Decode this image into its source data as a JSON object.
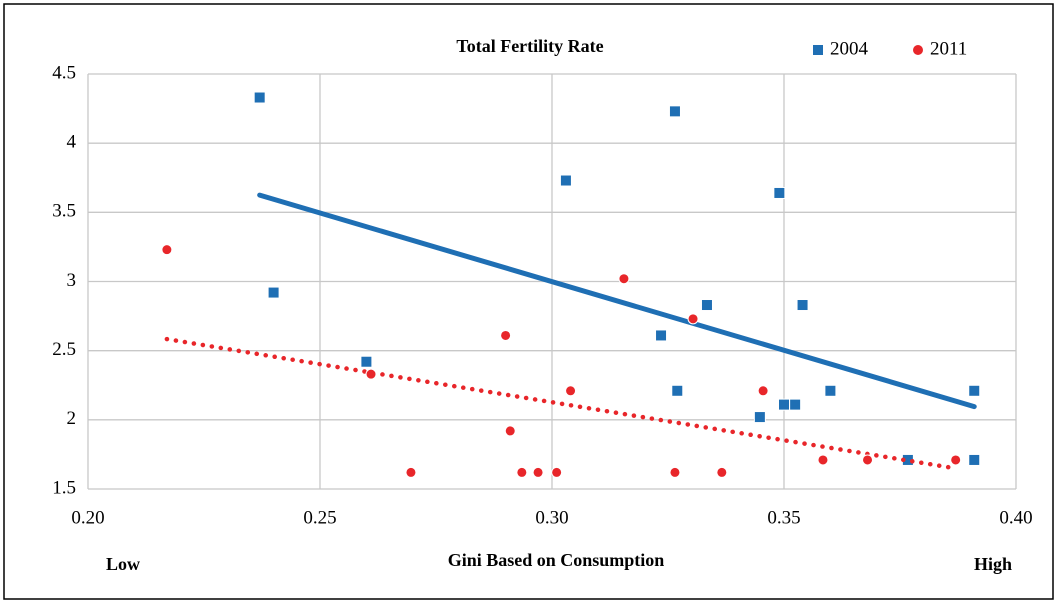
{
  "chart_data": {
    "type": "scatter",
    "title": "Total Fertility Rate",
    "x_label": "Gini Based on Consumption",
    "annotations": [
      "Low",
      "High"
    ],
    "xlim": [
      0.2,
      0.4
    ],
    "xticks": [
      {
        "value": 0.2,
        "label": "0.20"
      },
      {
        "value": 0.25,
        "label": "0.25"
      },
      {
        "value": 0.3,
        "label": "0.30"
      },
      {
        "value": 0.35,
        "label": "0.35"
      },
      {
        "value": 0.4,
        "label": "0.40"
      }
    ],
    "ylim": [
      1.5,
      4.5
    ],
    "yticks": [
      1.5,
      2,
      2.5,
      3,
      3.5,
      4,
      4.5
    ],
    "grid": true,
    "legend": "top-right",
    "series": [
      {
        "name": "2004",
        "color": "#1f6fb4",
        "marker": "square",
        "trendline": "linear",
        "trend_style": "solid",
        "x": [
          0.237,
          0.24,
          0.26,
          0.303,
          0.3235,
          0.3265,
          0.327,
          0.3334,
          0.3448,
          0.349,
          0.35,
          0.3524,
          0.354,
          0.36,
          0.3767,
          0.391,
          0.391
        ],
        "values": [
          4.33,
          2.92,
          2.42,
          3.73,
          2.61,
          4.23,
          2.21,
          2.83,
          2.02,
          3.64,
          2.11,
          2.11,
          2.83,
          2.21,
          1.71,
          2.21,
          1.71
        ]
      },
      {
        "name": "2011",
        "color": "#e8262a",
        "marker": "circle",
        "trendline": "linear",
        "trend_style": "dotted",
        "x": [
          0.217,
          0.261,
          0.2696,
          0.29,
          0.291,
          0.2935,
          0.297,
          0.301,
          0.304,
          0.3155,
          0.3265,
          0.3304,
          0.3366,
          0.3455,
          0.3584,
          0.368,
          0.387
        ],
        "values": [
          3.23,
          2.33,
          1.62,
          2.61,
          1.92,
          1.62,
          1.62,
          1.62,
          2.21,
          3.02,
          1.62,
          2.73,
          1.62,
          2.21,
          1.71,
          1.71,
          1.71
        ]
      }
    ]
  }
}
